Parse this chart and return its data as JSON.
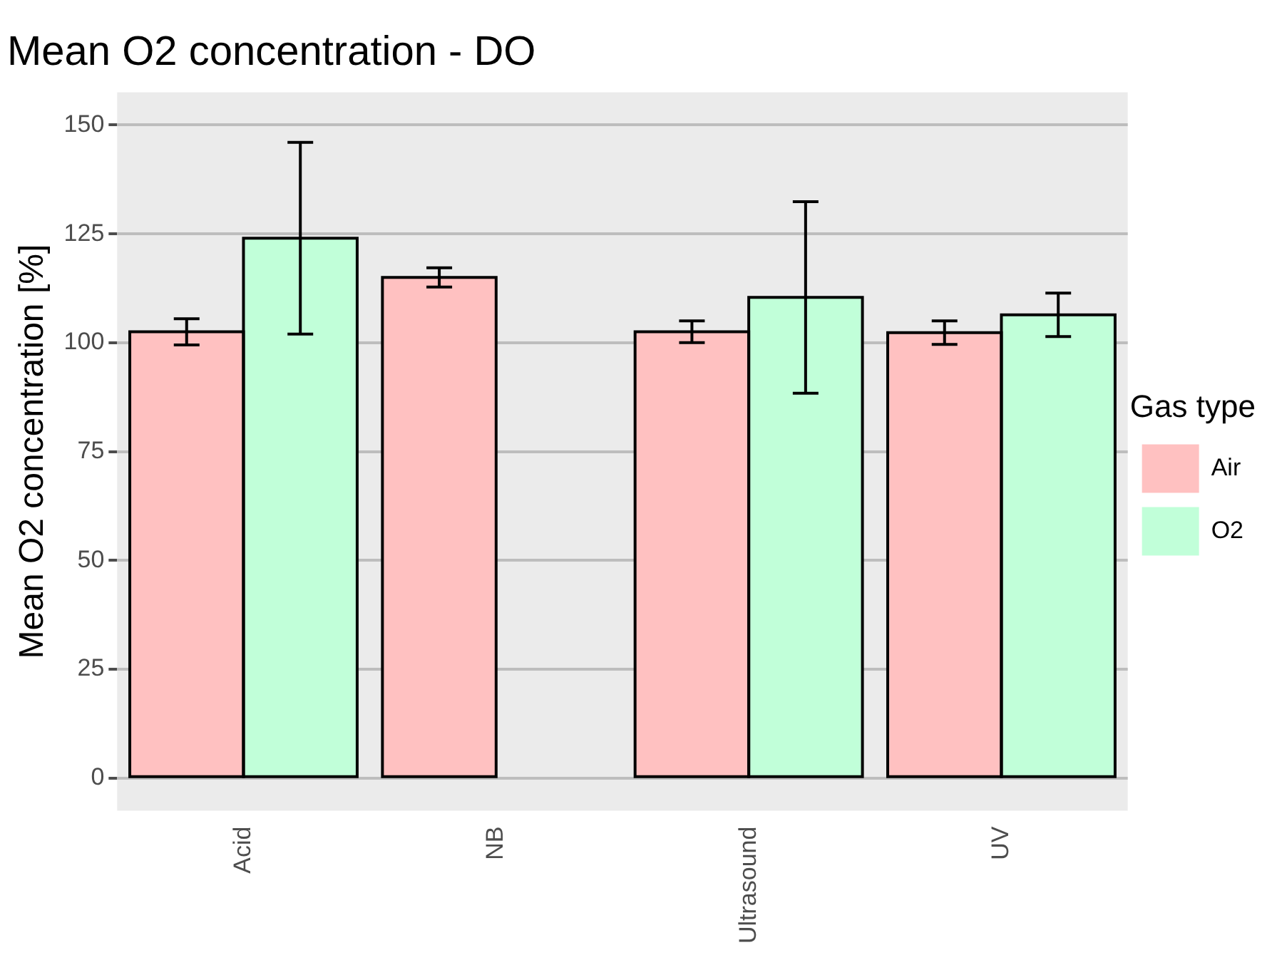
{
  "chart_data": {
    "type": "bar",
    "title": "Mean O2 concentration - DO",
    "ylabel": "Mean O2 concentration [%]",
    "legend_title": "Gas type",
    "categories": [
      "Acid",
      "NB",
      "Ultrasound",
      "UV"
    ],
    "series": [
      {
        "name": "Air",
        "color": "#ffc1c1",
        "values": [
          102.5,
          115,
          102.5,
          102.3
        ],
        "errors": [
          3,
          2.2,
          2.5,
          2.7
        ]
      },
      {
        "name": "O2",
        "color": "#c1ffd9",
        "values": [
          124,
          null,
          110.4,
          106.4
        ],
        "errors": [
          22,
          null,
          22,
          5
        ]
      }
    ],
    "ylim": [
      -7.5,
      157.5
    ],
    "yticks": [
      0,
      25,
      50,
      75,
      100,
      125,
      150
    ],
    "grid": "y",
    "legend": "right"
  }
}
